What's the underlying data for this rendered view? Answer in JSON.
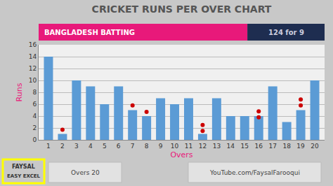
{
  "chart_data": {
    "type": "bar",
    "title": "CRICKET RUNS PER OVER CHART",
    "subtitle": "BANGLADESH BATTING",
    "xlabel": "Overs",
    "ylabel": "Runs",
    "annotations": [
      "124 for 9",
      "Overs 20",
      "YouTube.com/FaysalFarooqui",
      "FAYSAL",
      "EASY EXCEL"
    ],
    "series": [
      {
        "type": "bar",
        "color": "#5B9BD5",
        "x": [
          1,
          2,
          3,
          4,
          5,
          6,
          7,
          8,
          9,
          10,
          11,
          12,
          13,
          14,
          15,
          16,
          17,
          18,
          19,
          20
        ],
        "values": [
          14,
          1,
          10,
          9,
          6,
          9,
          5,
          4,
          7,
          6,
          7,
          1,
          7,
          4,
          4,
          4,
          9,
          3,
          5,
          10
        ]
      },
      {
        "type": "scatter",
        "color": "#CC0000",
        "marker": "circle",
        "x": [
          2,
          7,
          8,
          12,
          12,
          16,
          16,
          19,
          19
        ],
        "values": [
          1.7,
          5.8,
          4.7,
          2.5,
          1.5,
          4.8,
          3.8,
          6.8,
          5.8
        ]
      }
    ],
    "xlim": [
      0.3,
      20.7
    ],
    "xticks": [
      1,
      2,
      3,
      4,
      5,
      6,
      7,
      8,
      9,
      10,
      11,
      12,
      13,
      14,
      15,
      16,
      17,
      18,
      19,
      20
    ],
    "ylim": [
      0,
      16
    ],
    "yticks": [
      0,
      2,
      4,
      6,
      8,
      10,
      12,
      14,
      16
    ],
    "grid": true
  }
}
